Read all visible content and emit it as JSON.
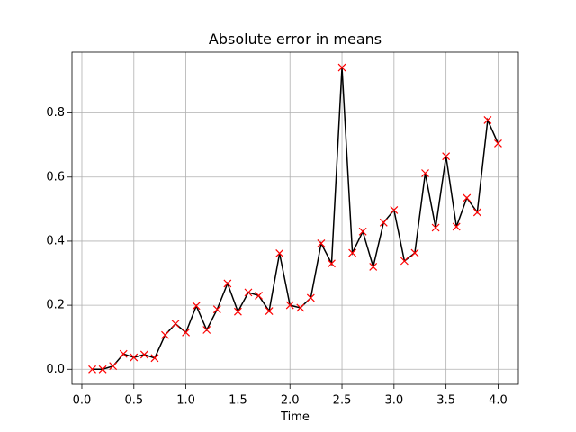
{
  "chart_data": {
    "type": "line",
    "title": "Absolute error in means",
    "xlabel": "Time",
    "x": [
      0.1,
      0.2,
      0.3,
      0.4,
      0.5,
      0.6,
      0.7,
      0.8,
      0.9,
      1.0,
      1.1,
      1.2,
      1.3,
      1.4,
      1.5,
      1.6,
      1.7,
      1.8,
      1.9,
      2.0,
      2.1,
      2.2,
      2.3,
      2.4,
      2.5,
      2.6,
      2.7,
      2.8,
      2.9,
      3.0,
      3.1,
      3.2,
      3.3,
      3.4,
      3.5,
      3.6,
      3.7,
      3.8,
      3.9,
      4.0
    ],
    "values": [
      0.0,
      0.0,
      0.01,
      0.048,
      0.037,
      0.046,
      0.035,
      0.107,
      0.142,
      0.115,
      0.198,
      0.123,
      0.187,
      0.268,
      0.18,
      0.24,
      0.23,
      0.182,
      0.362,
      0.2,
      0.192,
      0.223,
      0.393,
      0.33,
      0.942,
      0.363,
      0.43,
      0.32,
      0.458,
      0.497,
      0.338,
      0.363,
      0.612,
      0.442,
      0.665,
      0.445,
      0.535,
      0.49,
      0.778,
      0.705
    ],
    "color": "black",
    "marker_color": "red",
    "marker": "x",
    "xlim": [
      -0.095,
      4.195
    ],
    "ylim": [
      -0.047,
      0.99
    ],
    "xticks": [
      {
        "value": 0,
        "label": "0.0"
      },
      0.5,
      {
        "value": 1,
        "label": "1.0"
      },
      1.5,
      {
        "value": 2,
        "label": "2.0"
      },
      2.5,
      {
        "value": 3,
        "label": "3.0"
      },
      3.5,
      {
        "value": 4,
        "label": "4.0"
      }
    ],
    "yticks": [
      {
        "value": 0,
        "label": "0.0"
      },
      0.2,
      0.4,
      0.6,
      0.8
    ],
    "grid": true
  }
}
